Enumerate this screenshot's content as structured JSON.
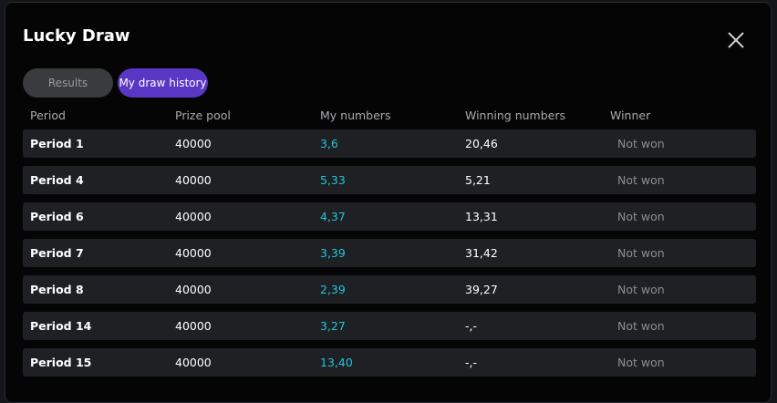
{
  "header": {
    "title": "Lucky Draw"
  },
  "tabs": [
    "Results",
    "My draw history"
  ],
  "table": {
    "columns": [
      "Period",
      "Prize pool",
      "My numbers",
      "Winning numbers",
      "Winner"
    ],
    "rows": [
      [
        "Period 1",
        "40000",
        "3,6",
        "20,46",
        "Not won"
      ],
      [
        "Period 4",
        "40000",
        "5,33",
        "5,21",
        "Not won"
      ],
      [
        "Period 6",
        "40000",
        "4,37",
        "13,31",
        "Not won"
      ],
      [
        "Period 7",
        "40000",
        "3,39",
        "31,42",
        "Not won"
      ],
      [
        "Period 8",
        "40000",
        "2,39",
        "39,27",
        "Not won"
      ],
      [
        "Period 14",
        "40000",
        "3,27",
        "-,-",
        "Not won"
      ],
      [
        "Period 15",
        "40000",
        "13,40",
        "-,-",
        "Not won"
      ]
    ]
  }
}
